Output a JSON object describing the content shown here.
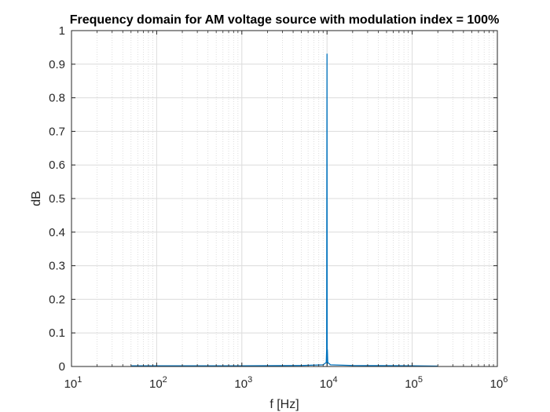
{
  "chart_data": {
    "type": "line",
    "title": "Frequency domain for AM voltage source with modulation index = 100%",
    "xlabel": "f [Hz]",
    "ylabel": "dB",
    "x_scale": "log",
    "xlim": [
      10,
      1000000
    ],
    "ylim": [
      0,
      1
    ],
    "grid": true,
    "minor_grid": true,
    "x_ticks": [
      {
        "base": "10",
        "exp": "1"
      },
      {
        "base": "10",
        "exp": "2"
      },
      {
        "base": "10",
        "exp": "3"
      },
      {
        "base": "10",
        "exp": "4"
      },
      {
        "base": "10",
        "exp": "5"
      },
      {
        "base": "10",
        "exp": "6"
      }
    ],
    "y_ticks": [
      "0",
      "0.1",
      "0.2",
      "0.3",
      "0.4",
      "0.5",
      "0.6",
      "0.7",
      "0.8",
      "0.9",
      "1"
    ],
    "line_color": "#0072BD",
    "series": [
      {
        "x": [
          50,
          100,
          1000,
          5000,
          9000,
          9800,
          9900,
          9950,
          10000,
          10050,
          10100,
          10200,
          11000,
          20000,
          100000,
          200000
        ],
        "y": [
          0.002,
          0.002,
          0.002,
          0.003,
          0.005,
          0.012,
          0.05,
          0.52,
          0.93,
          0.005,
          0.05,
          0.012,
          0.005,
          0.003,
          0.002,
          0.001
        ]
      }
    ]
  }
}
